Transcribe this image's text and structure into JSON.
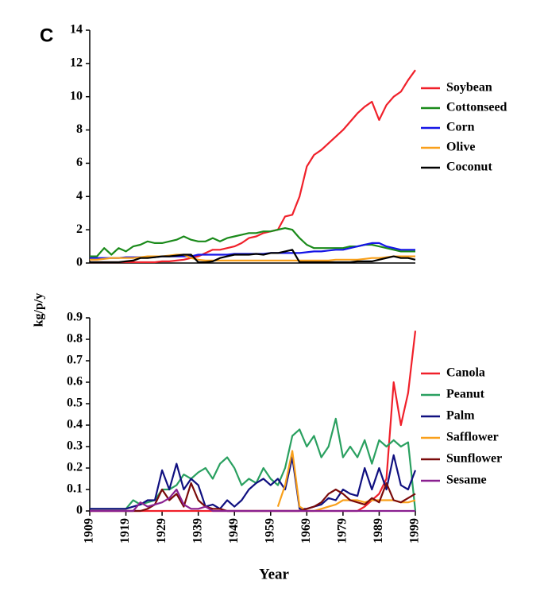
{
  "chart_data": [
    {
      "type": "line",
      "label": "C",
      "y_label": "kg/p/y",
      "x": [
        1909,
        1911,
        1913,
        1915,
        1917,
        1919,
        1921,
        1923,
        1925,
        1927,
        1929,
        1931,
        1933,
        1935,
        1937,
        1939,
        1941,
        1943,
        1945,
        1947,
        1949,
        1951,
        1953,
        1955,
        1957,
        1959,
        1961,
        1963,
        1965,
        1967,
        1969,
        1971,
        1973,
        1975,
        1977,
        1979,
        1981,
        1983,
        1985,
        1987,
        1989,
        1991,
        1993,
        1995,
        1997,
        1999
      ],
      "xlim": [
        1909,
        1999
      ],
      "ylim": [
        0,
        14
      ],
      "yticks": [
        0,
        2,
        4,
        6,
        8,
        10,
        12,
        14
      ],
      "series": [
        {
          "name": "Soybean",
          "color": "#f0202a",
          "values": [
            0.05,
            0.05,
            0.05,
            0.05,
            0.05,
            0.05,
            0.05,
            0.05,
            0.05,
            0.05,
            0.1,
            0.1,
            0.15,
            0.2,
            0.3,
            0.4,
            0.6,
            0.8,
            0.8,
            0.9,
            1.0,
            1.2,
            1.5,
            1.6,
            1.8,
            1.9,
            2.0,
            2.8,
            2.9,
            4.0,
            5.8,
            6.5,
            6.8,
            7.2,
            7.6,
            8.0,
            8.5,
            9.0,
            9.4,
            9.7,
            8.6,
            9.5,
            10.0,
            10.3,
            11.0,
            11.6
          ]
        },
        {
          "name": "Cottonseed",
          "color": "#1a8a1a",
          "values": [
            0.4,
            0.4,
            0.9,
            0.5,
            0.9,
            0.7,
            1.0,
            1.1,
            1.3,
            1.2,
            1.2,
            1.3,
            1.4,
            1.6,
            1.4,
            1.3,
            1.3,
            1.5,
            1.3,
            1.5,
            1.6,
            1.7,
            1.8,
            1.8,
            1.9,
            1.9,
            2.0,
            2.1,
            2.0,
            1.5,
            1.1,
            0.9,
            0.9,
            0.9,
            0.9,
            0.9,
            1.0,
            1.0,
            1.1,
            1.1,
            1.0,
            0.9,
            0.8,
            0.7,
            0.7,
            0.7
          ]
        },
        {
          "name": "Corn",
          "color": "#1515e6",
          "values": [
            0.3,
            0.3,
            0.3,
            0.3,
            0.3,
            0.35,
            0.35,
            0.35,
            0.35,
            0.35,
            0.4,
            0.4,
            0.4,
            0.4,
            0.4,
            0.5,
            0.5,
            0.5,
            0.5,
            0.5,
            0.55,
            0.55,
            0.55,
            0.55,
            0.55,
            0.6,
            0.6,
            0.6,
            0.6,
            0.6,
            0.65,
            0.7,
            0.7,
            0.75,
            0.8,
            0.8,
            0.9,
            1.0,
            1.1,
            1.2,
            1.2,
            1.0,
            0.9,
            0.8,
            0.8,
            0.8
          ]
        },
        {
          "name": "Olive",
          "color": "#f9a01b",
          "values": [
            0.2,
            0.2,
            0.25,
            0.3,
            0.3,
            0.3,
            0.3,
            0.35,
            0.4,
            0.4,
            0.4,
            0.45,
            0.5,
            0.5,
            0.3,
            0.2,
            0.15,
            0.15,
            0.15,
            0.15,
            0.15,
            0.15,
            0.15,
            0.15,
            0.15,
            0.15,
            0.15,
            0.15,
            0.15,
            0.15,
            0.15,
            0.15,
            0.15,
            0.15,
            0.2,
            0.2,
            0.2,
            0.2,
            0.25,
            0.3,
            0.3,
            0.35,
            0.4,
            0.4,
            0.4,
            0.4
          ]
        },
        {
          "name": "Coconut",
          "color": "#000000",
          "values": [
            0.05,
            0.05,
            0.05,
            0.05,
            0.05,
            0.1,
            0.15,
            0.3,
            0.3,
            0.35,
            0.4,
            0.4,
            0.45,
            0.5,
            0.5,
            0.05,
            0.05,
            0.1,
            0.3,
            0.4,
            0.5,
            0.5,
            0.5,
            0.55,
            0.5,
            0.6,
            0.6,
            0.7,
            0.8,
            0.05,
            0.05,
            0.05,
            0.05,
            0.05,
            0.05,
            0.05,
            0.05,
            0.1,
            0.1,
            0.1,
            0.2,
            0.3,
            0.4,
            0.3,
            0.3,
            0.2
          ]
        }
      ]
    },
    {
      "type": "line",
      "x_label": "Year",
      "x": [
        1909,
        1911,
        1913,
        1915,
        1917,
        1919,
        1921,
        1923,
        1925,
        1927,
        1929,
        1931,
        1933,
        1935,
        1937,
        1939,
        1941,
        1943,
        1945,
        1947,
        1949,
        1951,
        1953,
        1955,
        1957,
        1959,
        1961,
        1963,
        1965,
        1967,
        1969,
        1971,
        1973,
        1975,
        1977,
        1979,
        1981,
        1983,
        1985,
        1987,
        1989,
        1991,
        1993,
        1995,
        1997,
        1999
      ],
      "xlim": [
        1909,
        1999
      ],
      "xticks": [
        1909,
        1919,
        1929,
        1939,
        1949,
        1959,
        1969,
        1979,
        1989,
        1999
      ],
      "ylim": [
        0,
        0.9
      ],
      "yticks": [
        0,
        0.1,
        0.2,
        0.3,
        0.4,
        0.5,
        0.6,
        0.7,
        0.8,
        0.9
      ],
      "series": [
        {
          "name": "Canola",
          "color": "#f0202a",
          "values": [
            0,
            0,
            0,
            0,
            0,
            0,
            0,
            0,
            0,
            0,
            0,
            0,
            0,
            0,
            0,
            0,
            0,
            0,
            0,
            0,
            0,
            0,
            0,
            0,
            0,
            0,
            0,
            0,
            0,
            0,
            0,
            0,
            0,
            0,
            0,
            0,
            0,
            0,
            0.02,
            0.05,
            0.08,
            0.15,
            0.6,
            0.4,
            0.55,
            0.84
          ]
        },
        {
          "name": "Peanut",
          "color": "#2aa060",
          "values": [
            0.01,
            0.01,
            0.01,
            0.01,
            0.01,
            0.01,
            0.05,
            0.03,
            0.04,
            0.05,
            0.1,
            0.1,
            0.12,
            0.17,
            0.15,
            0.18,
            0.2,
            0.15,
            0.22,
            0.25,
            0.2,
            0.12,
            0.15,
            0.13,
            0.2,
            0.15,
            0.12,
            0.2,
            0.35,
            0.38,
            0.3,
            0.35,
            0.25,
            0.3,
            0.43,
            0.25,
            0.3,
            0.25,
            0.33,
            0.22,
            0.33,
            0.3,
            0.33,
            0.3,
            0.32,
            0.0
          ]
        },
        {
          "name": "Palm",
          "color": "#101080",
          "values": [
            0.01,
            0.01,
            0.01,
            0.01,
            0.01,
            0.01,
            0.02,
            0.03,
            0.05,
            0.05,
            0.19,
            0.1,
            0.22,
            0.1,
            0.15,
            0.12,
            0.02,
            0.03,
            0.01,
            0.05,
            0.02,
            0.05,
            0.1,
            0.13,
            0.15,
            0.12,
            0.15,
            0.1,
            0.25,
            0.01,
            0.01,
            0.02,
            0.03,
            0.06,
            0.05,
            0.1,
            0.08,
            0.07,
            0.2,
            0.1,
            0.2,
            0.1,
            0.26,
            0.12,
            0.1,
            0.19
          ]
        },
        {
          "name": "Safflower",
          "color": "#f9a01b",
          "values": [
            null,
            null,
            null,
            null,
            null,
            null,
            null,
            null,
            null,
            null,
            null,
            null,
            null,
            null,
            null,
            null,
            null,
            null,
            null,
            null,
            null,
            null,
            null,
            null,
            null,
            null,
            0.02,
            0.12,
            0.28,
            0.02,
            0.0,
            0.0,
            0.01,
            0.02,
            0.03,
            0.05,
            0.05,
            0.05,
            0.04,
            0.05,
            0.05,
            0.05,
            0.05,
            0.04,
            0.04,
            0.05
          ]
        },
        {
          "name": "Sunflower",
          "color": "#7a0a0a",
          "values": [
            0,
            0,
            0,
            0,
            0,
            0,
            0,
            0,
            0.01,
            0.03,
            0.1,
            0.05,
            0.08,
            0.02,
            0.13,
            0.05,
            0.02,
            0.01,
            0.01,
            0,
            0,
            0,
            0,
            0,
            0,
            0,
            0,
            0,
            0,
            0,
            0.01,
            0.02,
            0.04,
            0.08,
            0.1,
            0.08,
            0.05,
            0.04,
            0.03,
            0.06,
            0.04,
            0.13,
            0.05,
            0.04,
            0.06,
            0.08
          ]
        },
        {
          "name": "Sesame",
          "color": "#8a2090",
          "values": [
            0,
            0,
            0,
            0,
            0,
            0,
            0,
            0.04,
            0.02,
            0.03,
            0.04,
            0.06,
            0.1,
            0.03,
            0.01,
            0.01,
            0.02,
            0,
            0,
            0,
            0,
            0,
            0,
            0,
            0,
            0,
            0,
            0,
            0,
            0,
            0,
            0,
            0,
            0,
            0,
            0,
            0,
            0,
            0,
            0,
            0,
            0,
            0,
            0,
            0,
            0
          ]
        }
      ]
    }
  ]
}
